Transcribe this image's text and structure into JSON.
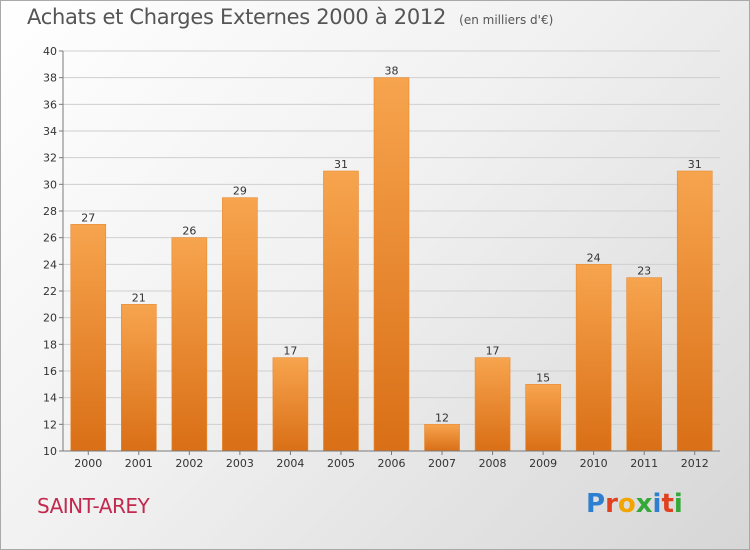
{
  "header": {
    "title": "Achats et Charges Externes 2000 à 2012",
    "unit": "(en milliers d'€)"
  },
  "footer": {
    "city": "SAINT-AREY",
    "logo": [
      "P",
      "r",
      "o",
      "x",
      "i",
      "t",
      "i"
    ],
    "logo_colors": [
      "#2f7fd1",
      "#e0421f",
      "#f2a400",
      "#35a838",
      "#2f7fd1",
      "#e0421f",
      "#35a838"
    ]
  },
  "colors": {
    "bar_top": "#f7a44e",
    "bar_bottom": "#d96f16",
    "bar_edge": "#e8892f",
    "grid": "#cfcfcf",
    "axis": "#7a7a7a"
  },
  "chart_data": {
    "type": "bar",
    "categories": [
      "2000",
      "2001",
      "2002",
      "2003",
      "2004",
      "2005",
      "2006",
      "2007",
      "2008",
      "2009",
      "2010",
      "2011",
      "2012"
    ],
    "values": [
      27,
      21,
      26,
      29,
      17,
      31,
      38,
      12,
      17,
      15,
      24,
      23,
      31
    ],
    "ylim": [
      10,
      40
    ],
    "yticks": [
      10,
      12,
      14,
      16,
      18,
      20,
      22,
      24,
      26,
      28,
      30,
      32,
      34,
      36,
      38,
      40
    ],
    "grid": true,
    "title": "Achats et Charges Externes 2000 à 2012",
    "xlabel": "",
    "ylabel": ""
  }
}
